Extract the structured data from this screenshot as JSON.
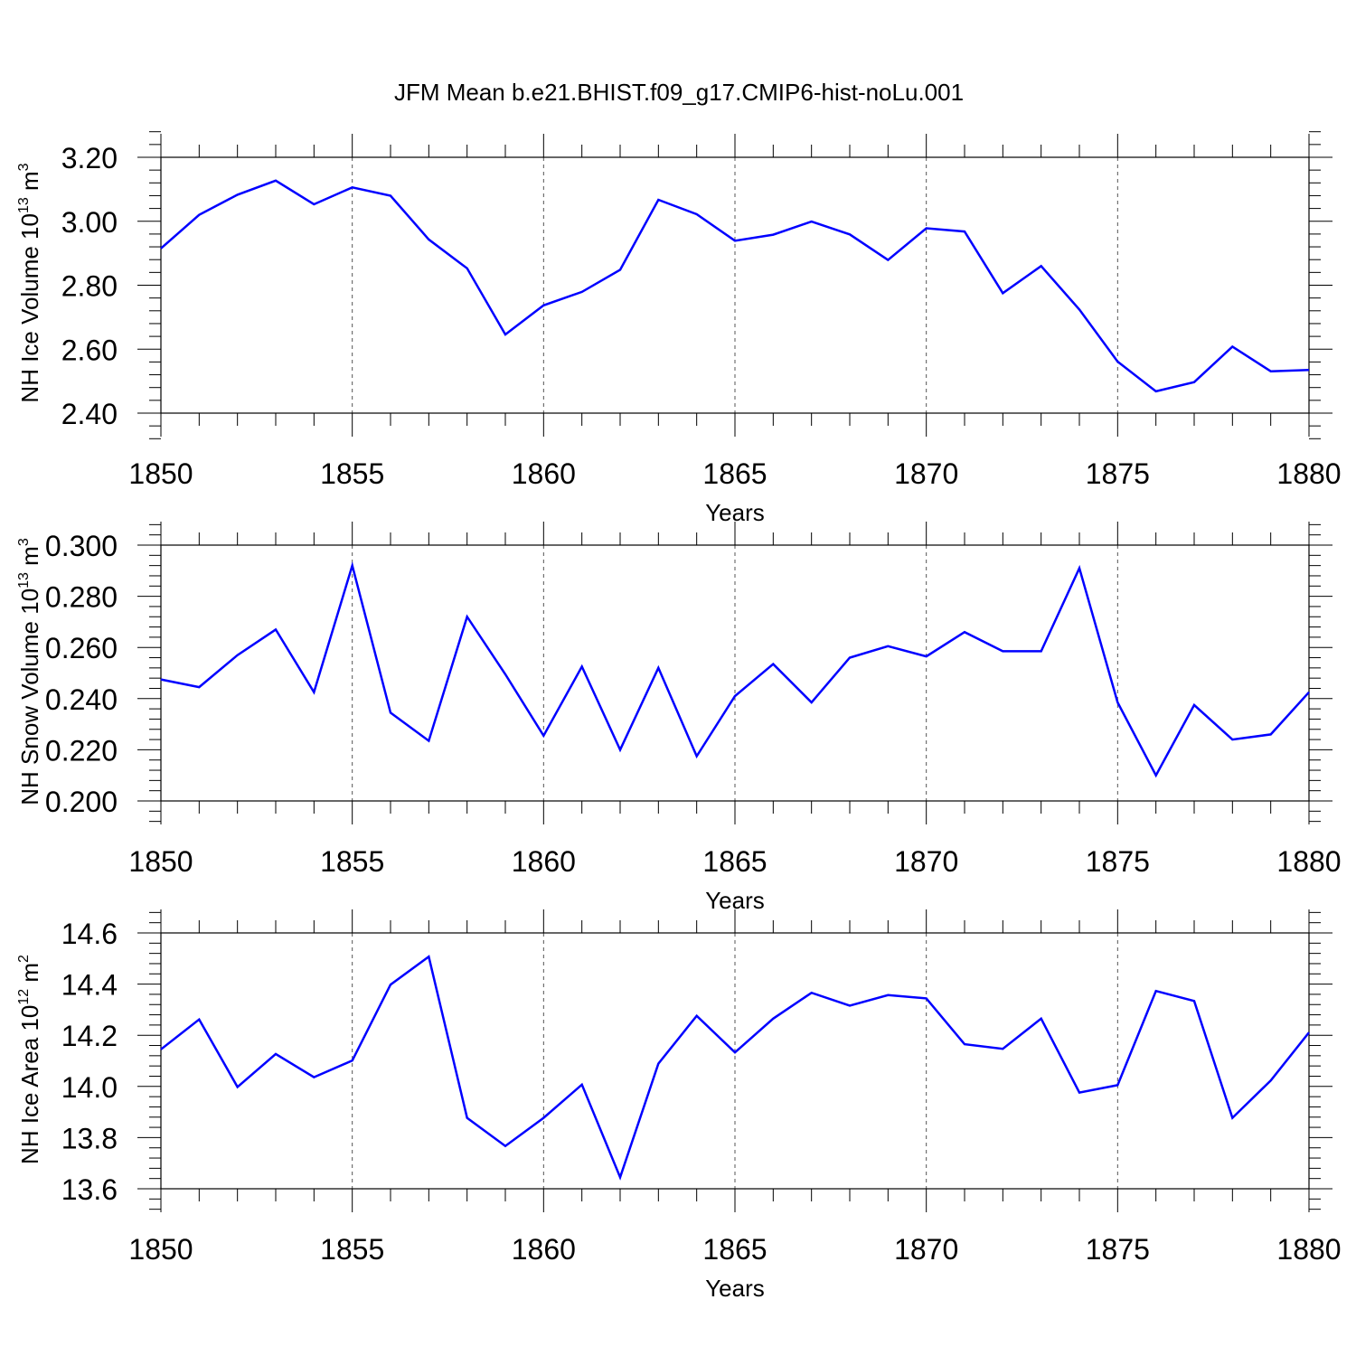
{
  "title": "JFM Mean b.e21.BHIST.f09_g17.CMIP6-hist-noLu.001",
  "line_color": "#0000ff",
  "chart_data": [
    {
      "type": "line",
      "title": "JFM Mean b.e21.BHIST.f09_g17.CMIP6-hist-noLu.001",
      "xlabel": "Years",
      "ylabel": "NH Ice Volume 10",
      "ylabel_exp": "13",
      "ylabel_unit": " m",
      "ylabel_unit_exp": "3",
      "xlim": [
        1850,
        1880
      ],
      "ylim": [
        2.4,
        3.2
      ],
      "xticks": [
        1850,
        1855,
        1860,
        1865,
        1870,
        1875,
        1880
      ],
      "xtick_labels": [
        "1850",
        "1855",
        "1860",
        "1865",
        "1870",
        "1875",
        "1880"
      ],
      "yticks": [
        2.4,
        2.6,
        2.8,
        3.0,
        3.2
      ],
      "ytick_labels": [
        "2.40",
        "2.60",
        "2.80",
        "3.00",
        "3.20"
      ],
      "x": [
        1850,
        1851,
        1852,
        1853,
        1854,
        1855,
        1856,
        1857,
        1858,
        1859,
        1860,
        1861,
        1862,
        1863,
        1864,
        1865,
        1866,
        1867,
        1868,
        1869,
        1870,
        1871,
        1872,
        1873,
        1874,
        1875,
        1876,
        1877,
        1878,
        1879,
        1880
      ],
      "y": [
        2.915,
        3.02,
        3.083,
        3.127,
        3.053,
        3.106,
        3.08,
        2.943,
        2.853,
        2.646,
        2.737,
        2.779,
        2.848,
        3.067,
        3.022,
        2.939,
        2.958,
        2.999,
        2.959,
        2.879,
        2.978,
        2.968,
        2.775,
        2.86,
        2.724,
        2.561,
        2.468,
        2.497,
        2.608,
        2.531,
        2.535
      ]
    },
    {
      "type": "line",
      "xlabel": "Years",
      "ylabel": "NH Snow Volume 10",
      "ylabel_exp": "13",
      "ylabel_unit": " m",
      "ylabel_unit_exp": "3",
      "xlim": [
        1850,
        1880
      ],
      "ylim": [
        0.2,
        0.3
      ],
      "xticks": [
        1850,
        1855,
        1860,
        1865,
        1870,
        1875,
        1880
      ],
      "xtick_labels": [
        "1850",
        "1855",
        "1860",
        "1865",
        "1870",
        "1875",
        "1880"
      ],
      "yticks": [
        0.2,
        0.22,
        0.24,
        0.26,
        0.28,
        0.3
      ],
      "ytick_labels": [
        "0.200",
        "0.220",
        "0.240",
        "0.260",
        "0.280",
        "0.300"
      ],
      "x": [
        1850,
        1851,
        1852,
        1853,
        1854,
        1855,
        1856,
        1857,
        1858,
        1859,
        1860,
        1861,
        1862,
        1863,
        1864,
        1865,
        1866,
        1867,
        1868,
        1869,
        1870,
        1871,
        1872,
        1873,
        1874,
        1875,
        1876,
        1877,
        1878,
        1879,
        1880
      ],
      "y": [
        0.2475,
        0.2445,
        0.257,
        0.267,
        0.2425,
        0.292,
        0.2345,
        0.2235,
        0.272,
        0.2495,
        0.2255,
        0.2525,
        0.22,
        0.252,
        0.2175,
        0.241,
        0.2535,
        0.2385,
        0.256,
        0.2605,
        0.2565,
        0.266,
        0.2585,
        0.2585,
        0.291,
        0.2385,
        0.21,
        0.2375,
        0.224,
        0.226,
        0.2425
      ]
    },
    {
      "type": "line",
      "xlabel": "Years",
      "ylabel": "NH Ice Area 10",
      "ylabel_exp": "12",
      "ylabel_unit": " m",
      "ylabel_unit_exp": "2",
      "xlim": [
        1850,
        1880
      ],
      "ylim": [
        13.6,
        14.6
      ],
      "xticks": [
        1850,
        1855,
        1860,
        1865,
        1870,
        1875,
        1880
      ],
      "xtick_labels": [
        "1850",
        "1855",
        "1860",
        "1865",
        "1870",
        "1875",
        "1880"
      ],
      "yticks": [
        13.6,
        13.8,
        14.0,
        14.2,
        14.4,
        14.6
      ],
      "ytick_labels": [
        "13.6",
        "13.8",
        "14.0",
        "14.2",
        "14.4",
        "14.6"
      ],
      "x": [
        1850,
        1851,
        1852,
        1853,
        1854,
        1855,
        1856,
        1857,
        1858,
        1859,
        1860,
        1861,
        1862,
        1863,
        1864,
        1865,
        1866,
        1867,
        1868,
        1869,
        1870,
        1871,
        1872,
        1873,
        1874,
        1875,
        1876,
        1877,
        1878,
        1879,
        1880
      ],
      "y": [
        14.145,
        14.262,
        13.998,
        14.127,
        14.036,
        14.101,
        14.398,
        14.507,
        13.877,
        13.767,
        13.877,
        14.007,
        13.645,
        14.089,
        14.276,
        14.133,
        14.265,
        14.366,
        14.316,
        14.357,
        14.344,
        14.165,
        14.147,
        14.265,
        13.976,
        14.005,
        14.373,
        14.334,
        13.877,
        14.023,
        14.211
      ]
    }
  ]
}
